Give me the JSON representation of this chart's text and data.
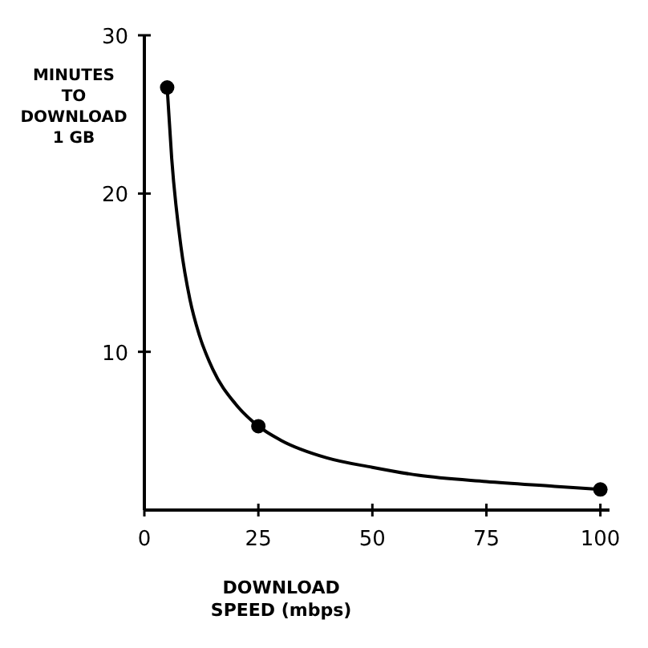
{
  "chart_data": {
    "type": "line",
    "xlabel": "DOWNLOAD SPEED (mbps)",
    "ylabel": "MINUTES TO DOWNLOAD 1 GB",
    "xlim": [
      0,
      102
    ],
    "ylim": [
      0,
      30
    ],
    "xticks": [
      0,
      25,
      50,
      75,
      100
    ],
    "yticks": [
      10,
      20,
      30
    ],
    "series": [
      {
        "color": "#000000",
        "x": [
          5,
          6,
          8,
          10,
          12,
          15,
          20,
          25,
          30,
          40,
          50,
          60,
          75,
          90,
          100
        ],
        "values": [
          26.7,
          22.2,
          16.7,
          13.3,
          11.1,
          8.9,
          6.7,
          5.3,
          4.4,
          3.3,
          2.7,
          2.2,
          1.8,
          1.5,
          1.3
        ]
      },
      {
        "type": "scatter",
        "color": "#000000",
        "marker": "circle",
        "x": [
          5,
          25,
          100
        ],
        "values": [
          26.7,
          5.3,
          1.3
        ]
      }
    ]
  }
}
